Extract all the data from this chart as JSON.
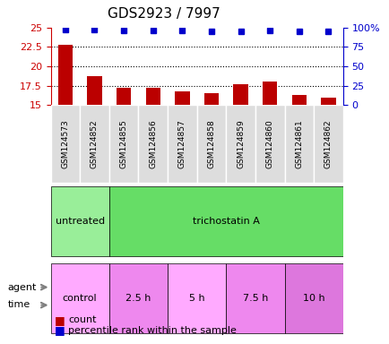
{
  "title": "GDS2923 / 7997",
  "samples": [
    "GSM124573",
    "GSM124852",
    "GSM124855",
    "GSM124856",
    "GSM124857",
    "GSM124858",
    "GSM124859",
    "GSM124860",
    "GSM124861",
    "GSM124862"
  ],
  "count_values": [
    22.8,
    18.7,
    17.2,
    17.2,
    16.8,
    16.5,
    17.7,
    18.0,
    16.3,
    15.9
  ],
  "percentile_values": [
    97,
    97,
    96,
    96,
    96,
    95,
    95,
    96,
    95,
    95
  ],
  "ylim_left": [
    15,
    25
  ],
  "ylim_right": [
    0,
    100
  ],
  "yticks_left": [
    15,
    17.5,
    20,
    22.5,
    25
  ],
  "yticks_right": [
    0,
    25,
    50,
    75,
    100
  ],
  "ytick_labels_left": [
    "15",
    "17.5",
    "20",
    "22.5",
    "25"
  ],
  "ytick_labels_right": [
    "0",
    "25",
    "50",
    "75",
    "100%"
  ],
  "bar_color": "#bb0000",
  "dot_color": "#0000cc",
  "left_tick_color": "#cc0000",
  "right_tick_color": "#0000cc",
  "agent_row": [
    {
      "label": "untreated",
      "start": 0,
      "end": 2,
      "color": "#99ee99"
    },
    {
      "label": "trichostatin A",
      "start": 2,
      "end": 10,
      "color": "#66dd66"
    }
  ],
  "time_row": [
    {
      "label": "control",
      "start": 0,
      "end": 2,
      "color": "#ffaaff"
    },
    {
      "label": "2.5 h",
      "start": 2,
      "end": 4,
      "color": "#ee88ee"
    },
    {
      "label": "5 h",
      "start": 4,
      "end": 6,
      "color": "#ffaaff"
    },
    {
      "label": "7.5 h",
      "start": 6,
      "end": 8,
      "color": "#ee88ee"
    },
    {
      "label": "10 h",
      "start": 8,
      "end": 10,
      "color": "#dd77dd"
    }
  ],
  "grid_color": "#888888",
  "bg_color": "#ffffff",
  "sample_bg_color": "#dddddd"
}
